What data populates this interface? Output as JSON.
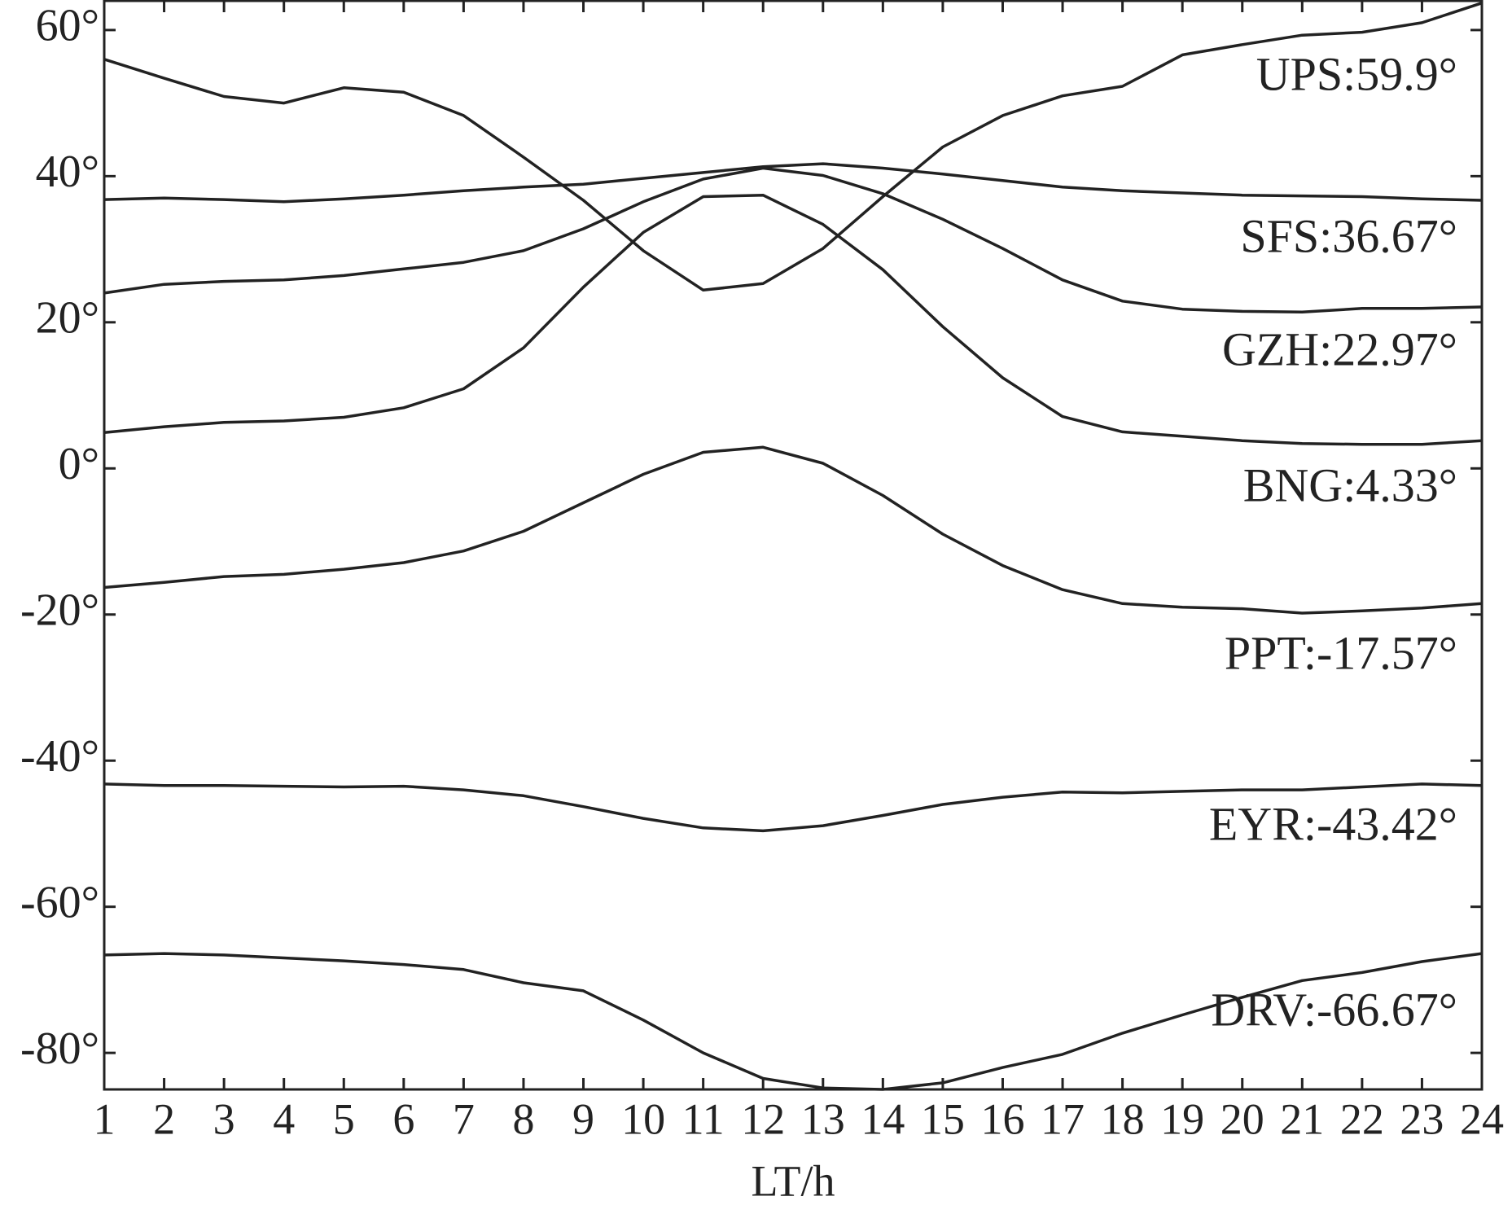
{
  "chart_data": {
    "type": "line",
    "x_label": "LT/h",
    "x": [
      1,
      2,
      3,
      4,
      5,
      6,
      7,
      8,
      9,
      10,
      11,
      12,
      13,
      14,
      15,
      16,
      17,
      18,
      19,
      20,
      21,
      22,
      23,
      24
    ],
    "xlim": [
      1,
      24
    ],
    "xticks": [
      1,
      2,
      3,
      4,
      5,
      6,
      7,
      8,
      9,
      10,
      11,
      12,
      13,
      14,
      15,
      16,
      17,
      18,
      19,
      20,
      21,
      22,
      23,
      24
    ],
    "ylim": [
      -85,
      64
    ],
    "yticks": [
      {
        "value": -80,
        "label": "-80°"
      },
      {
        "value": -60,
        "label": "-60°"
      },
      {
        "value": -40,
        "label": "-40°"
      },
      {
        "value": -20,
        "label": "-20°"
      },
      {
        "value": 0,
        "label": "0°"
      },
      {
        "value": 20,
        "label": "20°"
      },
      {
        "value": 40,
        "label": "40°"
      },
      {
        "value": 60,
        "label": "60°"
      }
    ],
    "grid": false,
    "series": [
      {
        "name": "UPS:59.9°",
        "color": "#222222",
        "values": [
          56.0,
          53.4,
          50.9,
          50.0,
          52.1,
          51.5,
          48.3,
          42.6,
          36.7,
          29.8,
          24.4,
          25.3,
          30.1,
          37.2,
          44.0,
          48.3,
          51.0,
          52.3,
          56.6,
          58.0,
          59.3,
          59.7,
          61.0,
          63.7
        ]
      },
      {
        "name": "SFS:36.67°",
        "color": "#222222",
        "values": [
          36.8,
          37.0,
          36.8,
          36.5,
          36.9,
          37.4,
          38.0,
          38.5,
          38.9,
          39.7,
          40.5,
          41.3,
          41.7,
          41.1,
          40.3,
          39.4,
          38.5,
          38.0,
          37.7,
          37.4,
          37.3,
          37.2,
          36.9,
          36.7
        ]
      },
      {
        "name": "GZH:22.97°",
        "color": "#222222",
        "values": [
          24.0,
          25.2,
          25.6,
          25.8,
          26.4,
          27.3,
          28.2,
          29.8,
          32.8,
          36.5,
          39.6,
          41.1,
          40.1,
          37.6,
          34.1,
          30.1,
          25.8,
          22.9,
          21.8,
          21.5,
          21.4,
          21.9,
          21.9,
          22.1
        ]
      },
      {
        "name": "BNG:4.33°",
        "color": "#222222",
        "values": [
          4.9,
          5.7,
          6.3,
          6.5,
          7.0,
          8.3,
          10.9,
          16.5,
          24.8,
          32.3,
          37.2,
          37.4,
          33.4,
          27.2,
          19.4,
          12.4,
          7.1,
          5.0,
          4.4,
          3.8,
          3.4,
          3.3,
          3.3,
          3.8
        ]
      },
      {
        "name": "PPT:-17.57°",
        "color": "#222222",
        "values": [
          -16.3,
          -15.6,
          -14.8,
          -14.5,
          -13.8,
          -12.9,
          -11.3,
          -8.6,
          -4.7,
          -0.8,
          2.2,
          2.9,
          0.7,
          -3.7,
          -9.0,
          -13.3,
          -16.6,
          -18.5,
          -19.0,
          -19.2,
          -19.8,
          -19.5,
          -19.1,
          -18.5
        ]
      },
      {
        "name": "EYR:-43.42°",
        "color": "#222222",
        "values": [
          -43.2,
          -43.4,
          -43.4,
          -43.5,
          -43.6,
          -43.5,
          -44.0,
          -44.8,
          -46.3,
          -47.9,
          -49.2,
          -49.6,
          -48.9,
          -47.5,
          -46.0,
          -45.0,
          -44.3,
          -44.4,
          -44.2,
          -44.0,
          -44.0,
          -43.6,
          -43.2,
          -43.4
        ]
      },
      {
        "name": "DRV:-66.67°",
        "color": "#222222",
        "values": [
          -66.6,
          -66.4,
          -66.6,
          -67.0,
          -67.4,
          -67.9,
          -68.6,
          -70.4,
          -71.5,
          -75.5,
          -80.0,
          -83.5,
          -84.8,
          -85.0,
          -84.1,
          -82.0,
          -80.2,
          -77.3,
          -74.8,
          -72.4,
          -70.1,
          -69.0,
          -67.5,
          -66.4
        ]
      }
    ]
  }
}
